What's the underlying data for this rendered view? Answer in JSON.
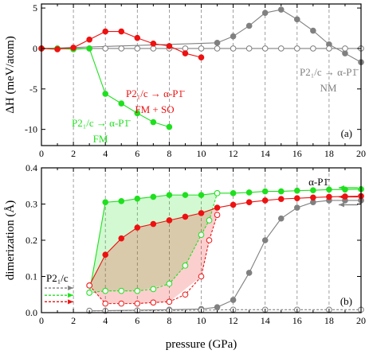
{
  "figure": {
    "xlabel": "pressure (GPa)",
    "x_tick_labels": [
      "0",
      "2",
      "4",
      "6",
      "8",
      "10",
      "12",
      "14",
      "16",
      "18",
      "20"
    ]
  },
  "chart_data": [
    {
      "type": "line",
      "panel": "(a)",
      "ylabel": "ΔH (meV/atom)",
      "xlim": [
        0,
        20
      ],
      "ylim": [
        -12,
        5.5
      ],
      "y_ticks": [
        5,
        0,
        -5,
        -10
      ],
      "y_tick_labels": [
        "5",
        "0",
        "-5",
        "-10"
      ],
      "grid": "vertical dashed lines at even pressures",
      "series": [
        {
          "key": "nm_filled",
          "color": "#808080",
          "marker": "filled",
          "line": "solid",
          "x": [
            0,
            11,
            12,
            13,
            14,
            15,
            16,
            17,
            18,
            19,
            20
          ],
          "y": [
            0,
            0.7,
            1.5,
            2.8,
            4.4,
            4.8,
            3.6,
            2.2,
            0.5,
            -0.6,
            -1.7
          ]
        },
        {
          "key": "nm_open",
          "color": "#808080",
          "marker": "open",
          "line": "solid",
          "x": [
            0,
            1,
            2,
            3,
            4,
            5,
            6,
            7,
            8,
            9,
            10,
            11,
            12,
            13,
            14,
            15,
            16,
            17,
            18,
            19,
            20
          ],
          "y": [
            0,
            0,
            0,
            0,
            0,
            0,
            0,
            0,
            0,
            0,
            0,
            0,
            0,
            0,
            0,
            0,
            0,
            0,
            0,
            0,
            0
          ]
        },
        {
          "key": "fm",
          "color": "#1ee01e",
          "marker": "filled",
          "line": "solid",
          "x": [
            0,
            1,
            2,
            3,
            4,
            5,
            6,
            7,
            8
          ],
          "y": [
            0,
            0,
            -0.1,
            0,
            -5.6,
            -6.8,
            -8.0,
            -9.1,
            -9.7
          ]
        },
        {
          "key": "fmso",
          "color": "#ee1111",
          "marker": "filled",
          "line": "solid",
          "x": [
            0,
            1,
            2,
            3,
            4,
            5,
            6,
            7,
            8,
            9,
            10
          ],
          "y": [
            0,
            -0.1,
            0.1,
            1.1,
            2.1,
            2.1,
            1.3,
            0.6,
            0.3,
            -0.6,
            -1.1
          ]
        }
      ],
      "annotations": [
        {
          "key": "fmso_l1",
          "text": "P2₁/c → α-P1̄",
          "color": "#ee1111"
        },
        {
          "key": "fmso_l2",
          "text": "FM + SO",
          "color": "#ee1111"
        },
        {
          "key": "nm_l1",
          "text": "P2₁/c → α-P1̄",
          "color": "#808080"
        },
        {
          "key": "nm_l2",
          "text": "NM",
          "color": "#808080"
        },
        {
          "key": "fm_l1",
          "text": "P2₁/c → α-P1̄",
          "color": "#1ee01e"
        },
        {
          "key": "fm_l2",
          "text": "FM",
          "color": "#1ee01e"
        },
        {
          "key": "panel",
          "text": "(a)",
          "color": "#000000"
        }
      ]
    },
    {
      "type": "line",
      "panel": "(b)",
      "ylabel": "dimerization (Å)",
      "xlim": [
        0,
        20
      ],
      "ylim": [
        0,
        0.4
      ],
      "y_ticks": [
        0,
        0.1,
        0.2,
        0.3,
        0.4
      ],
      "y_tick_labels": [
        "0.0",
        "0.1",
        "0.2",
        "0.3",
        "0.4"
      ],
      "grid": "vertical dashed lines at even pressures",
      "shaded_regions": [
        {
          "key": "green_region",
          "color": "#1ee01e",
          "upper": {
            "x": [
              3,
              4,
              6,
              8,
              10,
              11
            ],
            "y": [
              0.055,
              0.305,
              0.315,
              0.325,
              0.325,
              0.33
            ]
          },
          "lower": {
            "x": [
              3,
              4,
              6,
              8,
              9,
              10,
              10.5,
              11
            ],
            "y": [
              0.055,
              0.06,
              0.06,
              0.08,
              0.13,
              0.215,
              0.255,
              0.33
            ]
          }
        },
        {
          "key": "red_region",
          "color": "#ee1111",
          "upper": {
            "x": [
              3,
              4,
              5,
              6,
              7,
              8,
              9,
              10,
              11
            ],
            "y": [
              0.075,
              0.16,
              0.205,
              0.235,
              0.245,
              0.255,
              0.265,
              0.275,
              0.29
            ]
          },
          "lower": {
            "x": [
              3,
              4,
              6,
              8,
              10,
              10.5,
              11
            ],
            "y": [
              0.075,
              0.025,
              0.025,
              0.03,
              0.1,
              0.2,
              0.27
            ]
          }
        }
      ],
      "series": [
        {
          "key": "nm_filled",
          "color": "#808080",
          "marker": "filled",
          "line": "solid",
          "x": [
            3,
            8,
            10,
            11,
            12,
            13,
            14,
            15,
            16,
            17,
            18,
            19,
            20
          ],
          "y": [
            0.005,
            0.008,
            0.01,
            0.015,
            0.035,
            0.11,
            0.2,
            0.26,
            0.29,
            0.305,
            0.31,
            0.31,
            0.31
          ]
        },
        {
          "key": "nm_open",
          "color": "#808080",
          "marker": "open",
          "line": "dashed",
          "x": [
            3,
            4,
            6,
            8,
            10,
            12,
            14,
            16,
            18,
            20
          ],
          "y": [
            0.005,
            0.005,
            0.006,
            0.006,
            0.007,
            0.008,
            0.008,
            0.008,
            0.008,
            0.008
          ]
        },
        {
          "key": "fm_filled",
          "color": "#1ee01e",
          "marker": "filled",
          "line": "solid",
          "x": [
            3,
            4,
            5,
            6,
            7,
            8,
            9,
            10,
            11,
            12,
            13,
            14,
            15,
            16,
            17,
            18,
            19,
            20
          ],
          "y": [
            0.055,
            0.305,
            0.308,
            0.315,
            0.32,
            0.325,
            0.325,
            0.325,
            0.33,
            0.33,
            0.332,
            0.335,
            0.335,
            0.337,
            0.338,
            0.34,
            0.34,
            0.341
          ]
        },
        {
          "key": "fm_open",
          "color": "#1ee01e",
          "marker": "open",
          "line": "dashed",
          "x": [
            3,
            4,
            5,
            6,
            7,
            8,
            9,
            10,
            10.5,
            11
          ],
          "y": [
            0.055,
            0.06,
            0.06,
            0.06,
            0.065,
            0.08,
            0.13,
            0.215,
            0.255,
            0.33
          ]
        },
        {
          "key": "fmso_filled",
          "color": "#ee1111",
          "marker": "filled",
          "line": "solid",
          "x": [
            3,
            4,
            5,
            6,
            7,
            8,
            9,
            10,
            11,
            12,
            13,
            14,
            15,
            16,
            17,
            18,
            19,
            20
          ],
          "y": [
            0.075,
            0.16,
            0.205,
            0.235,
            0.245,
            0.255,
            0.265,
            0.275,
            0.29,
            0.298,
            0.305,
            0.31,
            0.314,
            0.316,
            0.318,
            0.32,
            0.321,
            0.322
          ]
        },
        {
          "key": "fmso_open",
          "color": "#ee1111",
          "marker": "open",
          "line": "dashed",
          "x": [
            3,
            4,
            5,
            6,
            7,
            8,
            9,
            10,
            10.5,
            11
          ],
          "y": [
            0.075,
            0.025,
            0.025,
            0.025,
            0.028,
            0.03,
            0.05,
            0.1,
            0.2,
            0.27
          ]
        }
      ],
      "arrows_left": [
        {
          "color": "#808080",
          "y": 0.068
        },
        {
          "color": "#1ee01e",
          "y": 0.048
        },
        {
          "color": "#ee1111",
          "y": 0.03
        }
      ],
      "arrows_right": [
        {
          "color": "#1ee01e",
          "y": 0.345
        },
        {
          "color": "#ee1111",
          "y": 0.32
        },
        {
          "color": "#808080",
          "y": 0.298
        }
      ],
      "annotations": [
        {
          "key": "p21c",
          "text": "P2₁/c",
          "color": "#000000"
        },
        {
          "key": "alpha",
          "text": "α-P1̄",
          "color": "#000000"
        },
        {
          "key": "panel",
          "text": "(b)",
          "color": "#000000"
        }
      ]
    }
  ]
}
